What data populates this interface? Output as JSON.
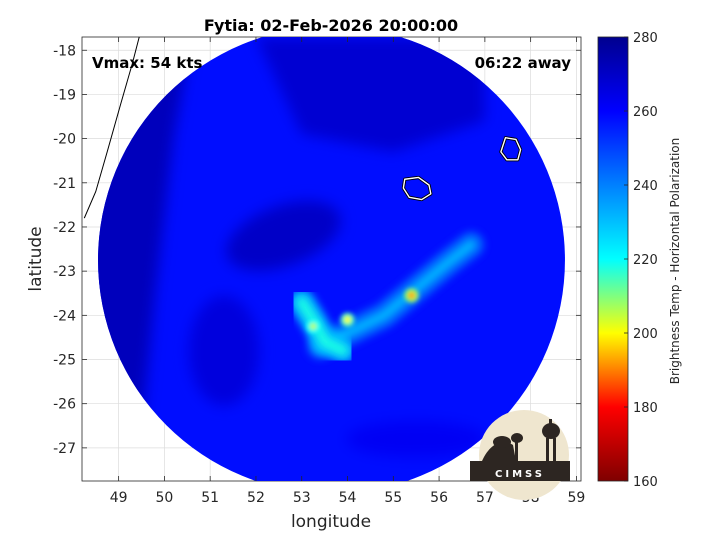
{
  "chart_data": {
    "type": "heatmap",
    "title": "Fytia: 02-Feb-2026 20:00:00",
    "xlabel": "longitude",
    "ylabel": "latitude",
    "xlim": [
      48.2,
      59.1
    ],
    "ylim": [
      -27.75,
      -17.7
    ],
    "x_ticks": [
      49,
      50,
      51,
      52,
      53,
      54,
      55,
      56,
      57,
      58,
      59
    ],
    "y_ticks": [
      -18,
      -19,
      -20,
      -21,
      -22,
      -23,
      -24,
      -25,
      -26,
      -27
    ],
    "x_tick_labels": [
      "49",
      "50",
      "51",
      "52",
      "53",
      "54",
      "55",
      "56",
      "57",
      "58",
      "59"
    ],
    "y_tick_labels": [
      "-18",
      "-19",
      "-20",
      "-21",
      "-22",
      "-23",
      "-24",
      "-25",
      "-26",
      "-27"
    ],
    "grid": true,
    "annotations": {
      "vmax": "Vmax: 54 kts",
      "time_away": "06:22 away"
    },
    "colorbar": {
      "label": "Brightness Temp - Horizontal Polarization",
      "min": 160,
      "max": 280,
      "ticks": [
        160,
        180,
        200,
        220,
        240,
        260,
        280
      ],
      "tick_labels": [
        "160",
        "180",
        "200",
        "220",
        "240",
        "260",
        "280"
      ],
      "colormap": [
        "#7f0000",
        "#ff0000",
        "#ffff00",
        "#00ffff",
        "#0080ff",
        "#0000ff",
        "#00008f"
      ]
    },
    "swath": {
      "center_lon": 53.65,
      "center_lat": -22.75,
      "radius_deg": 5.1
    },
    "features": [
      {
        "name": "rainband-east",
        "lon_lat": [
          [
            53.4,
            -24.7
          ],
          [
            54.2,
            -24.3
          ],
          [
            54.8,
            -24.0
          ],
          [
            55.5,
            -23.4
          ],
          [
            56.2,
            -22.8
          ],
          [
            56.7,
            -22.4
          ]
        ],
        "value": 232
      },
      {
        "name": "core-southwest",
        "lon_lat": [
          [
            53.0,
            -23.7
          ],
          [
            53.3,
            -24.2
          ],
          [
            53.5,
            -24.6
          ],
          [
            53.9,
            -24.8
          ]
        ],
        "value": 218
      },
      {
        "name": "hot-spot-1",
        "lon": 55.4,
        "lat": -23.55,
        "value": 192
      },
      {
        "name": "hot-spot-2",
        "lon": 53.25,
        "lat": -24.25,
        "value": 205
      },
      {
        "name": "hot-spot-3",
        "lon": 54.0,
        "lat": -24.1,
        "value": 200
      }
    ],
    "landmasses": [
      {
        "name": "Reunion",
        "outline": [
          [
            55.25,
            -20.92
          ],
          [
            55.55,
            -20.88
          ],
          [
            55.78,
            -21.05
          ],
          [
            55.82,
            -21.25
          ],
          [
            55.62,
            -21.38
          ],
          [
            55.35,
            -21.33
          ],
          [
            55.22,
            -21.12
          ]
        ]
      },
      {
        "name": "Mauritius",
        "outline": [
          [
            57.45,
            -19.98
          ],
          [
            57.68,
            -20.02
          ],
          [
            57.78,
            -20.25
          ],
          [
            57.72,
            -20.48
          ],
          [
            57.48,
            -20.48
          ],
          [
            57.35,
            -20.3
          ]
        ]
      }
    ],
    "coastline_madagascar": [
      [
        49.45,
        -17.7
      ],
      [
        49.3,
        -18.3
      ],
      [
        49.05,
        -19.2
      ],
      [
        48.75,
        -20.3
      ],
      [
        48.5,
        -21.2
      ],
      [
        48.25,
        -21.8
      ]
    ],
    "logo_text": "CIMSS"
  }
}
